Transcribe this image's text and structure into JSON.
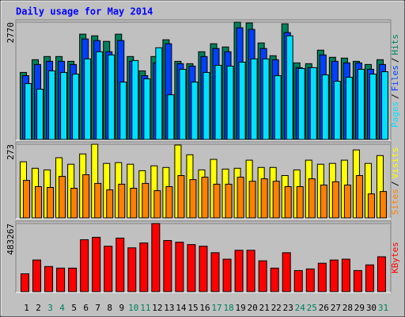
{
  "chart_data": {
    "type": "bar",
    "title": "Daily usage for May 2014",
    "categories": [
      "1",
      "2",
      "3",
      "4",
      "5",
      "6",
      "7",
      "8",
      "9",
      "10",
      "11",
      "12",
      "13",
      "14",
      "15",
      "16",
      "17",
      "18",
      "19",
      "20",
      "21",
      "22",
      "23",
      "24",
      "25",
      "26",
      "27",
      "28",
      "29",
      "30",
      "31"
    ],
    "category_colors": [
      "#000000",
      "#000000",
      "#00805c",
      "#00805c",
      "#000000",
      "#000000",
      "#000000",
      "#000000",
      "#000000",
      "#00805c",
      "#00805c",
      "#000000",
      "#000000",
      "#000000",
      "#000000",
      "#000000",
      "#00805c",
      "#00805c",
      "#000000",
      "#000000",
      "#000000",
      "#000000",
      "#000000",
      "#00805c",
      "#00805c",
      "#000000",
      "#000000",
      "#000000",
      "#000000",
      "#000000",
      "#00805c"
    ],
    "legend_separator": "/",
    "panels": [
      {
        "ylim": [
          0,
          2770
        ],
        "yticks": [
          2770
        ],
        "series": [
          {
            "name": "Hits",
            "color": "#00805c",
            "values": [
              1583,
              1884,
              1959,
              1959,
              1846,
              2487,
              2449,
              2317,
              2487,
              1959,
              1620,
              1959,
              2355,
              1846,
              1790,
              2072,
              2261,
              2185,
              2770,
              2751,
              2280,
              1978,
              2732,
              1809,
              1790,
              2110,
              1941,
              1922,
              1846,
              1771,
              1884
            ]
          },
          {
            "name": "Files",
            "color": "#0040ff",
            "values": [
              1507,
              1771,
              1846,
              1846,
              1771,
              2374,
              2336,
              2072,
              2336,
              1846,
              1507,
              1809,
              2261,
              1790,
              1733,
              1959,
              2148,
              2072,
              2638,
              2600,
              2148,
              1884,
              2525,
              1696,
              1696,
              1997,
              1846,
              1809,
              1809,
              1658,
              1771
            ]
          },
          {
            "name": "Pages",
            "color": "#00e0ff",
            "values": [
              1319,
              1187,
              1620,
              1583,
              1545,
              1903,
              2072,
              1997,
              1356,
              1865,
              1432,
              2167,
              1055,
              1658,
              1356,
              1583,
              1752,
              1733,
              1827,
              1903,
              1903,
              1507,
              2449,
              1677,
              1696,
              1526,
              1375,
              1470,
              1658,
              1545,
              1601
            ]
          }
        ]
      },
      {
        "ylim": [
          0,
          273
        ],
        "yticks": [
          273
        ],
        "series": [
          {
            "name": "Visits",
            "color": "#ffff00",
            "values": [
              208,
              184,
              178,
              223,
              199,
              237,
              273,
              202,
              205,
              199,
              175,
              193,
              187,
              270,
              234,
              178,
              217,
              181,
              184,
              214,
              187,
              187,
              157,
              178,
              214,
              199,
              202,
              214,
              252,
              202,
              231
            ]
          },
          {
            "name": "Sites",
            "color": "#ff8000",
            "values": [
              139,
              116,
              113,
              154,
              110,
              160,
              128,
              104,
              125,
              110,
              128,
              101,
              116,
              157,
              142,
              151,
              125,
              125,
              151,
              136,
              145,
              136,
              116,
              116,
              145,
              122,
              134,
              122,
              157,
              89,
              98
            ]
          }
        ]
      },
      {
        "ylim": [
          0,
          483267
        ],
        "yticks": [
          483267
        ],
        "series": [
          {
            "name": "KBytes",
            "color": "#ff0000",
            "values": [
              126566,
              224367,
              178343,
              166837,
              166837,
              368192,
              385451,
              322168,
              379698,
              310662,
              345180,
              483267,
              362439,
              350933,
              333674,
              322168,
              276144,
              230120,
              293403,
              293403,
              218614,
              166837,
              276144,
              149578,
              161084,
              201355,
              224367,
              230120,
              149578,
              189849,
              247379
            ]
          }
        ]
      }
    ]
  }
}
